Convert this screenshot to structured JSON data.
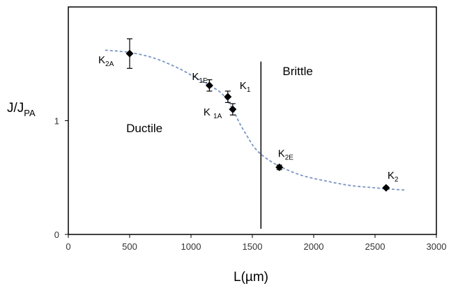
{
  "chart_data": {
    "type": "scatter",
    "xlabel": "L(µm)",
    "ylabel": {
      "main": "J/J",
      "sub": "PA"
    },
    "xlim": [
      0,
      3000
    ],
    "ylim": [
      0,
      2
    ],
    "x_ticks": [
      0,
      500,
      1000,
      1500,
      2000,
      2500,
      3000
    ],
    "y_ticks": [
      0,
      1
    ],
    "grid": false,
    "points": [
      {
        "x": 500,
        "y": 1.59,
        "err": 0.13,
        "label": {
          "main": "K",
          "sub": "2A"
        }
      },
      {
        "x": 1150,
        "y": 1.31,
        "err": 0.05,
        "label": {
          "main": "K",
          "sub": "1E"
        }
      },
      {
        "x": 1300,
        "y": 1.21,
        "err": 0.05,
        "label": {
          "main": "K",
          "sub": "1"
        }
      },
      {
        "x": 1340,
        "y": 1.1,
        "err": 0.05,
        "label": {
          "main": "K ",
          "sub": "1A"
        }
      },
      {
        "x": 1720,
        "y": 0.59,
        "err": 0.02,
        "label": {
          "main": "K",
          "sub": "2E"
        }
      },
      {
        "x": 2590,
        "y": 0.41,
        "err": 0.01,
        "label": {
          "main": "K",
          "sub": "2"
        }
      }
    ],
    "trend_curve": [
      [
        300,
        1.62
      ],
      [
        500,
        1.6
      ],
      [
        700,
        1.55
      ],
      [
        900,
        1.46
      ],
      [
        1050,
        1.37
      ],
      [
        1150,
        1.31
      ],
      [
        1250,
        1.24
      ],
      [
        1330,
        1.12
      ],
      [
        1400,
        0.97
      ],
      [
        1460,
        0.86
      ],
      [
        1520,
        0.76
      ],
      [
        1600,
        0.68
      ],
      [
        1720,
        0.6
      ],
      [
        1900,
        0.52
      ],
      [
        2100,
        0.47
      ],
      [
        2300,
        0.43
      ],
      [
        2500,
        0.41
      ],
      [
        2600,
        0.4
      ],
      [
        2750,
        0.39
      ]
    ],
    "boundary_x": 1570,
    "boundary_y_range": [
      0.05,
      1.52
    ],
    "regions": [
      {
        "text": "Ductile",
        "x": 620,
        "y": 0.9
      },
      {
        "text": "Brittle",
        "x": 1870,
        "y": 1.4
      }
    ],
    "colors": {
      "marker": "#000000",
      "trend": "#7a96c4",
      "axis": "#000000",
      "tick_text": "#333333",
      "boundary": "#000000"
    }
  }
}
